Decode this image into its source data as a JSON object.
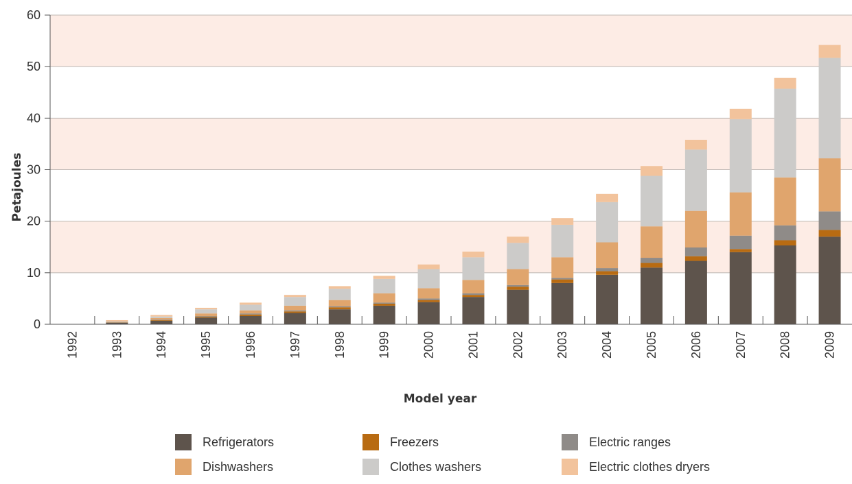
{
  "chart_data": {
    "type": "bar",
    "stacked": true,
    "xlabel": "Model year",
    "ylabel": "Petajoules",
    "ylim": [
      0,
      60
    ],
    "yticks": [
      0,
      10,
      20,
      30,
      40,
      50,
      60
    ],
    "grid": true,
    "legend_position": "bottom",
    "categories": [
      "1992",
      "1993",
      "1994",
      "1995",
      "1996",
      "1997",
      "1998",
      "1999",
      "2000",
      "2001",
      "2002",
      "2003",
      "2004",
      "2005",
      "2006",
      "2007",
      "2008",
      "2009"
    ],
    "series": [
      {
        "name": "Refrigerators",
        "color": "#5e544c",
        "values": [
          0,
          0.3,
          0.7,
          1.3,
          1.6,
          2.2,
          2.9,
          3.6,
          4.3,
          5.3,
          6.7,
          8.0,
          9.6,
          11.0,
          12.3,
          14.0,
          15.3,
          17.0
        ]
      },
      {
        "name": "Freezers",
        "color": "#b86b12",
        "values": [
          0,
          0.05,
          0.1,
          0.2,
          0.3,
          0.3,
          0.4,
          0.4,
          0.4,
          0.4,
          0.6,
          0.7,
          0.7,
          0.9,
          0.9,
          0.6,
          1.0,
          1.3
        ]
      },
      {
        "name": "Electric ranges",
        "color": "#8f8b88",
        "values": [
          0,
          0.05,
          0.1,
          0.1,
          0.2,
          0.2,
          0.2,
          0.2,
          0.3,
          0.3,
          0.3,
          0.3,
          0.6,
          1.0,
          1.7,
          2.6,
          2.9,
          3.6
        ]
      },
      {
        "name": "Dishwashers",
        "color": "#e0a56d",
        "values": [
          0,
          0.1,
          0.3,
          0.5,
          0.6,
          0.9,
          1.2,
          1.8,
          2.0,
          2.6,
          3.1,
          4.0,
          5.0,
          6.1,
          7.1,
          8.4,
          9.3,
          10.3
        ]
      },
      {
        "name": "Clothes washers",
        "color": "#cccbc9",
        "values": [
          0,
          0.1,
          0.3,
          0.8,
          1.1,
          1.7,
          2.2,
          2.8,
          3.7,
          4.4,
          5.1,
          6.3,
          7.8,
          9.8,
          11.9,
          14.2,
          17.2,
          19.5
        ]
      },
      {
        "name": "Electric clothes dryers",
        "color": "#f2c39c",
        "values": [
          0,
          0.2,
          0.3,
          0.3,
          0.4,
          0.4,
          0.5,
          0.6,
          0.9,
          1.1,
          1.2,
          1.3,
          1.6,
          1.9,
          1.9,
          2.0,
          2.1,
          2.5
        ]
      }
    ]
  },
  "style": {
    "band_color": "#fdece5",
    "grid_color": "#bdb7b3",
    "axis_color": "#555555"
  }
}
